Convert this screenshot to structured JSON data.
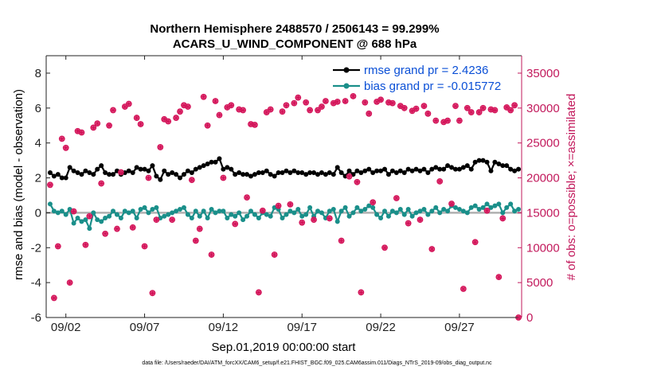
{
  "chart_data": {
    "type": "line",
    "title_line1": "Northern Hemisphere 2488570 / 2506143 = 99.299%",
    "title_line2": "ACARS_U_WIND_COMPONENT @ 688 hPa",
    "xlabel": "Sep.01,2019 00:00:00 start",
    "ylabel_left": "rmse and bias (model - observation)",
    "ylabel_right": "# of obs: o=possible; ×=assimilated",
    "footer": "data file: /Users/raeder/DAI/ATM_forcXX/CAM6_setup/f.e21.FHIST_BGC.f09_025.CAM6assim.011/Diags_NTrS_2019-09/obs_diag_output.nc",
    "xlim": [
      0.75,
      30.95
    ],
    "ylim_left": [
      -6,
      9
    ],
    "ylim_right": [
      0,
      37500
    ],
    "x_ticks": [
      {
        "value": 2,
        "label": "09/02"
      },
      {
        "value": 7,
        "label": "09/07"
      },
      {
        "value": 12,
        "label": "09/12"
      },
      {
        "value": 17,
        "label": "09/17"
      },
      {
        "value": 22,
        "label": "09/22"
      },
      {
        "value": 27,
        "label": "09/27"
      }
    ],
    "y_ticks_left": [
      {
        "value": -6,
        "label": "-6"
      },
      {
        "value": -4,
        "label": "-4"
      },
      {
        "value": -2,
        "label": "-2"
      },
      {
        "value": 0,
        "label": "0"
      },
      {
        "value": 2,
        "label": "2"
      },
      {
        "value": 4,
        "label": "4"
      },
      {
        "value": 6,
        "label": "6"
      },
      {
        "value": 8,
        "label": "8"
      }
    ],
    "y_ticks_right": [
      {
        "value": 0,
        "label": "0"
      },
      {
        "value": 5000,
        "label": "5000"
      },
      {
        "value": 10000,
        "label": "10000"
      },
      {
        "value": 15000,
        "label": "15000"
      },
      {
        "value": 20000,
        "label": "20000"
      },
      {
        "value": 25000,
        "label": "25000"
      },
      {
        "value": 30000,
        "label": "30000"
      },
      {
        "value": 35000,
        "label": "35000"
      }
    ],
    "zero_line": 0,
    "colors": {
      "rmse": "#000000",
      "bias": "#1a8f8a",
      "obs": "#d4155a",
      "right_axis": "#c2185b",
      "legend_text": "#0a4fd6",
      "zero_line": "#b0b0b0"
    },
    "series": [
      {
        "name": "rmse grand pr = 2.4236",
        "axis": "left",
        "x": [
          1.0,
          1.25,
          1.5,
          1.75,
          2.0,
          2.25,
          2.5,
          2.75,
          3.0,
          3.25,
          3.5,
          3.75,
          4.0,
          4.25,
          4.5,
          4.75,
          5.0,
          5.25,
          5.5,
          5.75,
          6.0,
          6.25,
          6.5,
          6.75,
          7.0,
          7.25,
          7.5,
          7.75,
          8.0,
          8.25,
          8.5,
          8.75,
          9.0,
          9.25,
          9.5,
          9.75,
          10.0,
          10.25,
          10.5,
          10.75,
          11.0,
          11.25,
          11.5,
          11.75,
          12.0,
          12.25,
          12.5,
          12.75,
          13.0,
          13.25,
          13.5,
          13.75,
          14.0,
          14.25,
          14.5,
          14.75,
          15.0,
          15.25,
          15.5,
          15.75,
          16.0,
          16.25,
          16.5,
          16.75,
          17.0,
          17.25,
          17.5,
          17.75,
          18.0,
          18.25,
          18.5,
          18.75,
          19.0,
          19.25,
          19.5,
          19.75,
          20.0,
          20.25,
          20.5,
          20.75,
          21.0,
          21.25,
          21.5,
          21.75,
          22.0,
          22.25,
          22.5,
          22.75,
          23.0,
          23.25,
          23.5,
          23.75,
          24.0,
          24.25,
          24.5,
          24.75,
          25.0,
          25.25,
          25.5,
          25.75,
          26.0,
          26.25,
          26.5,
          26.75,
          27.0,
          27.25,
          27.5,
          27.75,
          28.0,
          28.25,
          28.5,
          28.75,
          29.0,
          29.25,
          29.5,
          29.75,
          30.0,
          30.25,
          30.5,
          30.75
        ],
        "values": [
          2.3,
          2.1,
          2.2,
          2.0,
          2.0,
          2.6,
          2.4,
          2.3,
          2.2,
          2.4,
          2.3,
          2.2,
          2.5,
          2.7,
          2.3,
          2.2,
          2.2,
          2.4,
          2.2,
          2.3,
          2.4,
          2.3,
          2.6,
          2.5,
          2.5,
          2.4,
          2.7,
          2.1,
          1.9,
          2.4,
          2.2,
          2.3,
          2.2,
          2.0,
          2.2,
          2.4,
          2.3,
          2.5,
          2.6,
          2.7,
          2.8,
          2.9,
          2.9,
          3.1,
          2.5,
          2.6,
          2.5,
          2.2,
          2.3,
          2.2,
          2.2,
          2.1,
          2.2,
          2.3,
          2.3,
          2.4,
          2.2,
          2.1,
          2.3,
          2.3,
          2.4,
          2.3,
          2.4,
          2.3,
          2.3,
          2.2,
          2.3,
          2.3,
          2.2,
          2.3,
          2.2,
          2.3,
          2.2,
          2.6,
          2.3,
          2.1,
          2.4,
          2.2,
          2.4,
          2.3,
          2.4,
          2.5,
          2.3,
          2.4,
          2.4,
          2.5,
          2.2,
          2.4,
          2.3,
          2.4,
          2.3,
          2.5,
          2.4,
          2.5,
          2.4,
          2.5,
          2.3,
          2.5,
          2.6,
          2.5,
          2.5,
          2.7,
          2.6,
          2.5,
          2.5,
          2.6,
          2.7,
          2.5,
          2.9,
          3.0,
          3.0,
          2.9,
          2.4,
          2.9,
          2.8,
          2.7,
          2.7,
          2.5,
          2.4,
          2.5
        ]
      },
      {
        "name": "bias grand pr = -0.015772",
        "axis": "left",
        "x": [
          1.0,
          1.25,
          1.5,
          1.75,
          2.0,
          2.25,
          2.5,
          2.75,
          3.0,
          3.25,
          3.5,
          3.75,
          4.0,
          4.25,
          4.5,
          4.75,
          5.0,
          5.25,
          5.5,
          5.75,
          6.0,
          6.25,
          6.5,
          6.75,
          7.0,
          7.25,
          7.5,
          7.75,
          8.0,
          8.25,
          8.5,
          8.75,
          9.0,
          9.25,
          9.5,
          9.75,
          10.0,
          10.25,
          10.5,
          10.75,
          11.0,
          11.25,
          11.5,
          11.75,
          12.0,
          12.25,
          12.5,
          12.75,
          13.0,
          13.25,
          13.5,
          13.75,
          14.0,
          14.25,
          14.5,
          14.75,
          15.0,
          15.25,
          15.5,
          15.75,
          16.0,
          16.25,
          16.5,
          16.75,
          17.0,
          17.25,
          17.5,
          17.75,
          18.0,
          18.25,
          18.5,
          18.75,
          19.0,
          19.25,
          19.5,
          19.75,
          20.0,
          20.25,
          20.5,
          20.75,
          21.0,
          21.25,
          21.5,
          21.75,
          22.0,
          22.25,
          22.5,
          22.75,
          23.0,
          23.25,
          23.5,
          23.75,
          24.0,
          24.25,
          24.5,
          24.75,
          25.0,
          25.25,
          25.5,
          25.75,
          26.0,
          26.25,
          26.5,
          26.75,
          27.0,
          27.25,
          27.5,
          27.75,
          28.0,
          28.25,
          28.5,
          28.75,
          29.0,
          29.25,
          29.5,
          29.75,
          30.0,
          30.25,
          30.5,
          30.75
        ],
        "values": [
          0.5,
          0.1,
          0.0,
          0.1,
          -0.1,
          0.2,
          -0.6,
          -0.3,
          -0.5,
          -0.4,
          -0.9,
          0.0,
          -0.4,
          -0.5,
          -0.3,
          -0.2,
          0.1,
          -0.1,
          -0.3,
          0.1,
          0.0,
          0.1,
          -0.3,
          0.2,
          0.3,
          0.0,
          0.2,
          0.3,
          -0.3,
          -0.2,
          -0.1,
          0.0,
          0.1,
          0.2,
          0.3,
          -0.1,
          -0.3,
          0.1,
          -0.2,
          0.1,
          -0.3,
          0.2,
          0.0,
          0.1,
          0.1,
          -0.3,
          -0.1,
          -0.2,
          0.0,
          -0.4,
          -0.2,
          0.1,
          -0.1,
          -0.3,
          0.0,
          -0.1,
          -0.2,
          0.3,
          0.2,
          -0.3,
          -0.1,
          0.1,
          0.0,
          0.2,
          -0.2,
          -0.1,
          0.3,
          -0.2,
          0.1,
          0.0,
          -0.3,
          0.1,
          0.2,
          -0.5,
          0.1,
          0.3,
          -0.2,
          0.0,
          0.3,
          0.1,
          0.2,
          0.4,
          0.3,
          -0.1,
          -0.3,
          0.1,
          -0.2,
          0.1,
          0.0,
          0.2,
          -0.1,
          0.2,
          -0.2,
          0.0,
          0.1,
          0.2,
          -0.1,
          0.1,
          0.3,
          0.0,
          0.2,
          0.1,
          0.4,
          0.3,
          0.2,
          0.1,
          0.0,
          0.3,
          0.4,
          0.2,
          0.3,
          0.5,
          0.3,
          0.4,
          0.5,
          0.0,
          0.3,
          0.5,
          0.1,
          0.2
        ]
      },
      {
        "name": "obs possible / assimilated",
        "axis": "right",
        "x": [
          1.0,
          1.25,
          1.5,
          1.75,
          2.0,
          2.25,
          2.5,
          2.75,
          3.0,
          3.25,
          3.5,
          3.75,
          4.0,
          4.25,
          4.5,
          4.75,
          5.0,
          5.25,
          5.5,
          5.75,
          6.0,
          6.25,
          6.5,
          6.75,
          7.0,
          7.25,
          7.5,
          7.75,
          8.0,
          8.25,
          8.5,
          8.75,
          9.0,
          9.25,
          9.5,
          9.75,
          10.0,
          10.25,
          10.5,
          10.75,
          11.0,
          11.25,
          11.5,
          11.75,
          12.0,
          12.25,
          12.5,
          12.75,
          13.0,
          13.25,
          13.5,
          13.75,
          14.0,
          14.25,
          14.5,
          14.75,
          15.0,
          15.25,
          15.5,
          15.75,
          16.0,
          16.25,
          16.5,
          16.75,
          17.0,
          17.25,
          17.5,
          17.75,
          18.0,
          18.25,
          18.5,
          18.75,
          19.0,
          19.25,
          19.5,
          19.75,
          20.0,
          20.25,
          20.5,
          20.75,
          21.0,
          21.25,
          21.5,
          21.75,
          22.0,
          22.25,
          22.5,
          22.75,
          23.0,
          23.25,
          23.5,
          23.75,
          24.0,
          24.25,
          24.5,
          24.75,
          25.0,
          25.25,
          25.5,
          25.75,
          26.0,
          26.25,
          26.5,
          26.75,
          27.0,
          27.25,
          27.5,
          27.75,
          28.0,
          28.25,
          28.5,
          28.75,
          29.0,
          29.25,
          29.5,
          29.75,
          30.0,
          30.25,
          30.5,
          30.75
        ],
        "values": [
          19000,
          2800,
          10200,
          25600,
          24300,
          5000,
          15200,
          26700,
          26500,
          10400,
          14500,
          27200,
          27800,
          19200,
          12000,
          27500,
          29700,
          12700,
          20800,
          30200,
          30600,
          12900,
          28600,
          27700,
          10200,
          20000,
          3500,
          14000,
          24400,
          28400,
          28100,
          14000,
          28600,
          29500,
          30400,
          30200,
          19700,
          11000,
          12700,
          31600,
          27500,
          9000,
          31000,
          29000,
          20000,
          30100,
          30400,
          13400,
          29800,
          29700,
          17200,
          27700,
          27600,
          3600,
          15300,
          29400,
          29800,
          9000,
          16000,
          29500,
          30400,
          16200,
          30700,
          31500,
          13600,
          30800,
          29700,
          14000,
          29700,
          30200,
          31000,
          14200,
          30700,
          30900,
          11000,
          31000,
          20200,
          31700,
          19400,
          3600,
          30800,
          29200,
          16500,
          30900,
          31200,
          10000,
          30800,
          30700,
          17100,
          30300,
          30000,
          13500,
          29600,
          29900,
          14000,
          30300,
          29200,
          9800,
          28200,
          19500,
          28000,
          28200,
          16300,
          30300,
          28200,
          4100,
          30000,
          29400,
          10800,
          29400,
          30000,
          15300,
          29800,
          29700,
          5800,
          14200,
          30100,
          29700,
          30400,
          0
        ]
      }
    ]
  }
}
